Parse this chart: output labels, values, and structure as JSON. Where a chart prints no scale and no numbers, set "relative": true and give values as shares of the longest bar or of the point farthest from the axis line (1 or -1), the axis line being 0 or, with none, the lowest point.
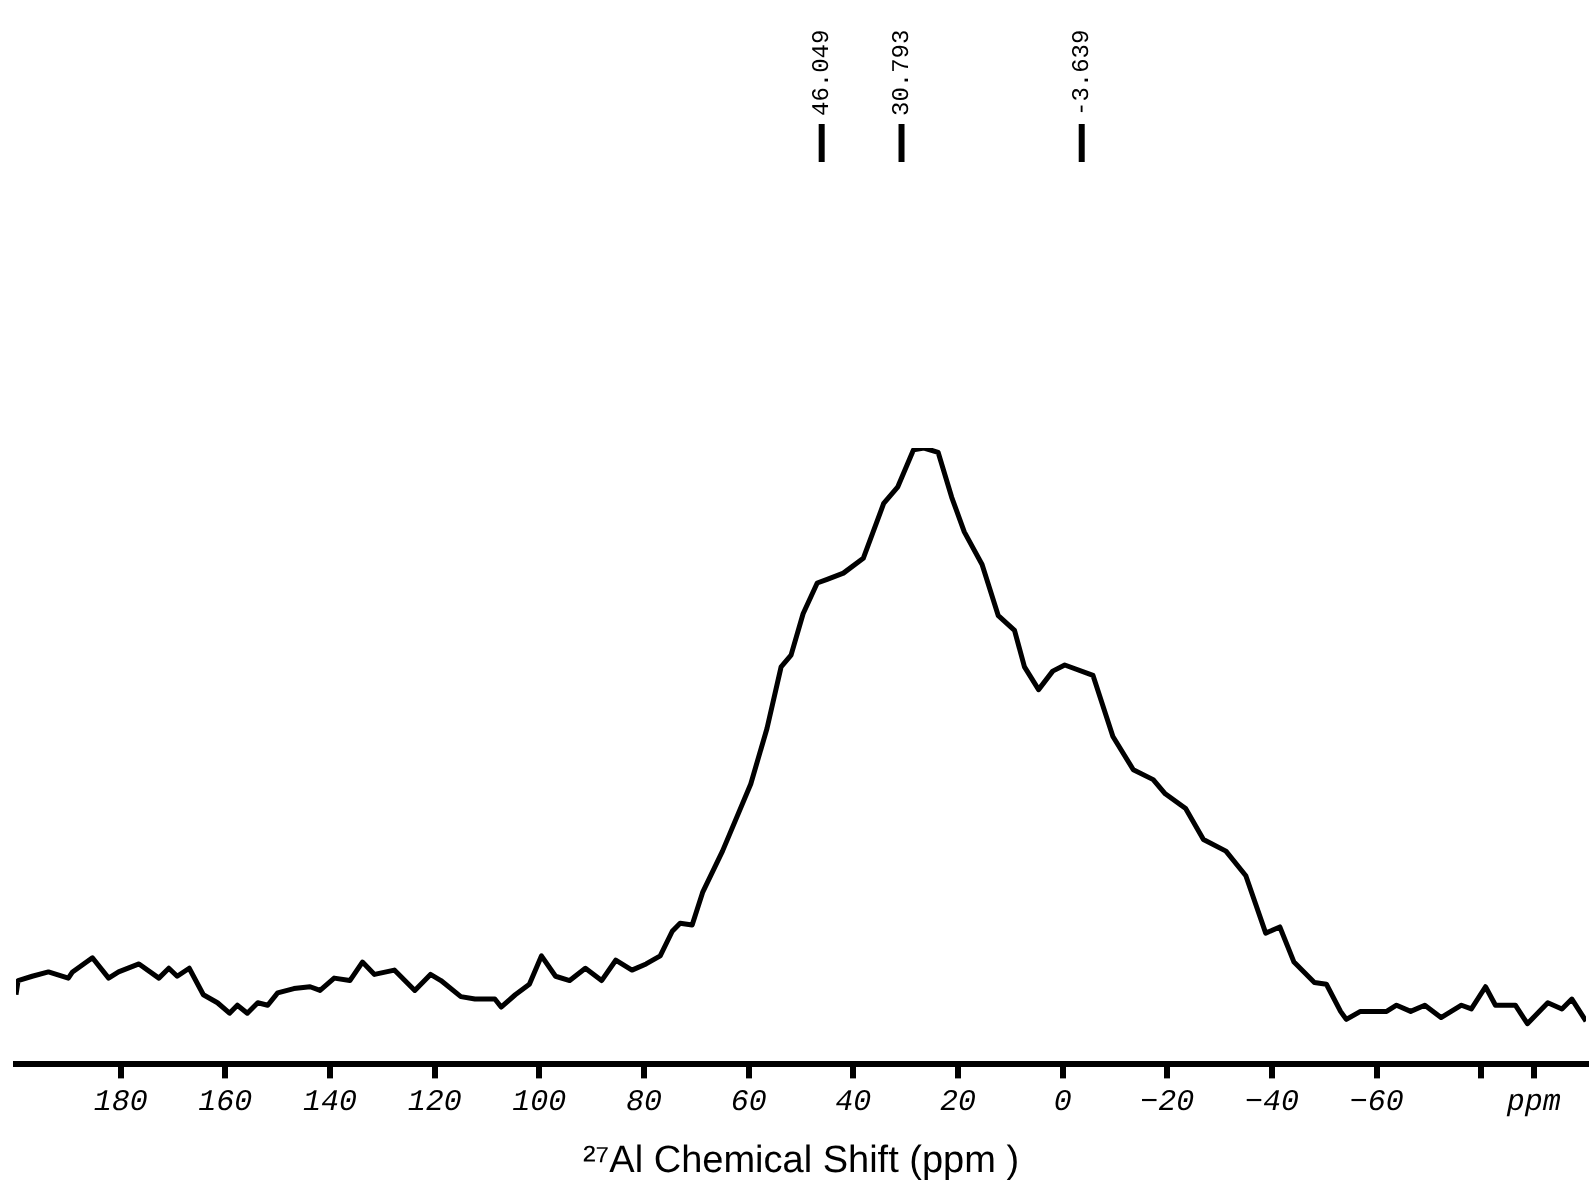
{
  "chart_data": {
    "type": "line",
    "relative": true,
    "xlabel": "²⁷Al Chemical Shift (ppm )",
    "xlim": [
      200,
      -100
    ],
    "xticks": [
      180,
      160,
      140,
      120,
      100,
      80,
      60,
      40,
      20,
      0,
      -20,
      -40,
      -60,
      {
        "value": -80,
        "label": null
      },
      {
        "value": -90,
        "label": "ppm"
      }
    ],
    "grid": false,
    "legend": false,
    "marker": "none",
    "line_style": "solid",
    "ref_lines": [
      {
        "axis": "x",
        "value": 46.049,
        "label": "46.049"
      },
      {
        "axis": "x",
        "value": 30.793,
        "label": "30.793"
      },
      {
        "axis": "x",
        "value": -3.639,
        "label": "-3.639"
      }
    ],
    "series": [
      {
        "color": "#000000",
        "x": [
          200,
          199.6,
          196.9,
          193.8,
          190.0,
          189.2,
          185.4,
          182.3,
          180.4,
          176.5,
          172.7,
          170.8,
          169.2,
          166.9,
          164.2,
          161.5,
          159.2,
          157.7,
          155.8,
          153.8,
          151.9,
          150.0,
          146.9,
          143.8,
          141.9,
          139.2,
          136.2,
          133.8,
          131.5,
          127.7,
          123.8,
          120.8,
          118.8,
          115.0,
          112.3,
          108.5,
          107.3,
          104.6,
          101.9,
          99.6,
          96.9,
          94.2,
          91.2,
          88.1,
          85.4,
          82.3,
          79.6,
          76.9,
          74.6,
          73.1,
          70.8,
          68.8,
          65.0,
          59.6,
          56.5,
          53.8,
          51.9,
          49.6,
          46.9,
          45.0,
          41.9,
          38.1,
          34.2,
          31.5,
          28.5,
          26.5,
          23.8,
          21.2,
          18.8,
          15.4,
          12.3,
          9.2,
          7.3,
          4.6,
          1.9,
          -0.4,
          -5.8,
          -9.6,
          -13.5,
          -17.3,
          -19.6,
          -23.5,
          -26.9,
          -31.2,
          -35.0,
          -38.8,
          -41.5,
          -44.2,
          -48.1,
          -50.4,
          -53.1,
          -54.2,
          -56.9,
          -61.9,
          -63.8,
          -66.5,
          -69.2,
          -72.3,
          -76.2,
          -78.1,
          -80.8,
          -82.7,
          -86.5,
          -88.8,
          -92.7,
          -95.4,
          -97.3,
          -100
        ],
        "values": [
          0.113,
          0.136,
          0.143,
          0.15,
          0.14,
          0.15,
          0.173,
          0.14,
          0.15,
          0.163,
          0.14,
          0.156,
          0.143,
          0.156,
          0.113,
          0.1,
          0.083,
          0.096,
          0.083,
          0.1,
          0.096,
          0.116,
          0.123,
          0.126,
          0.12,
          0.14,
          0.136,
          0.166,
          0.146,
          0.153,
          0.12,
          0.146,
          0.136,
          0.11,
          0.106,
          0.106,
          0.093,
          0.113,
          0.13,
          0.176,
          0.143,
          0.136,
          0.156,
          0.136,
          0.169,
          0.153,
          0.163,
          0.176,
          0.216,
          0.229,
          0.226,
          0.279,
          0.346,
          0.455,
          0.545,
          0.645,
          0.664,
          0.731,
          0.781,
          0.787,
          0.797,
          0.821,
          0.91,
          0.937,
          0.997,
          1,
          0.993,
          0.92,
          0.864,
          0.811,
          0.728,
          0.704,
          0.645,
          0.608,
          0.638,
          0.648,
          0.631,
          0.532,
          0.478,
          0.462,
          0.439,
          0.415,
          0.365,
          0.346,
          0.306,
          0.213,
          0.223,
          0.166,
          0.133,
          0.13,
          0.086,
          0.073,
          0.086,
          0.086,
          0.096,
          0.086,
          0.096,
          0.076,
          0.096,
          0.09,
          0.126,
          0.096,
          0.096,
          0.066,
          0.1,
          0.09,
          0.106,
          0.07
        ]
      }
    ]
  }
}
